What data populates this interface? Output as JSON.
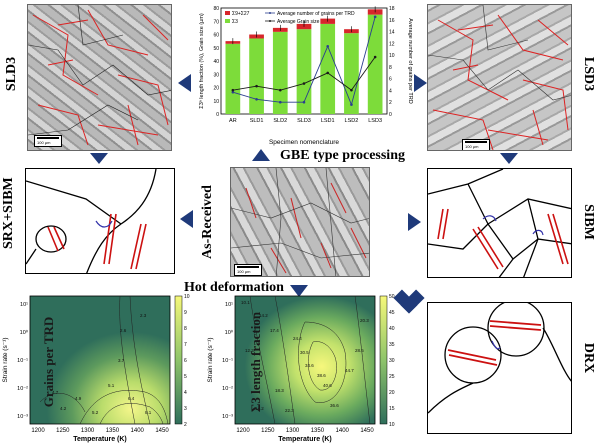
{
  "labels": {
    "sld3": "SLD3",
    "lsd3": "LSD3",
    "srx_sibm": "SRX+SIBM",
    "sibm": "SIBM",
    "as_received": "As-Received",
    "drx": "DRX",
    "gbe": "GBE type processing",
    "hot_deformation": "Hot deformation"
  },
  "scale": {
    "left": "100 µm",
    "center": "100 µm",
    "right": "100 µm"
  },
  "chart_data": [
    {
      "type": "bar",
      "categories": [
        "AR",
        "SLD1",
        "SLD2",
        "SLD3",
        "LSD1",
        "LSD2",
        "LSD3"
      ],
      "series": [
        {
          "name": "Σ9+Σ27",
          "values": [
            2,
            3,
            3,
            4,
            4,
            3,
            4
          ]
        },
        {
          "name": "Σ3",
          "values": [
            53,
            57,
            62,
            64,
            68,
            61,
            75
          ]
        },
        {
          "name": "Average number of grains per TRD",
          "values": [
            3.7,
            2.5,
            2.0,
            2.0,
            11.5,
            1.6,
            16.5
          ]
        },
        {
          "name": "Average Grain size",
          "values": [
            18,
            21,
            18,
            23,
            31,
            18,
            43
          ]
        }
      ],
      "xlabel": "Specimen nomenclature",
      "ylabel": "Σ3ⁿ length fraction (%), Grain size (µm)",
      "y2label": "Average number of grains per TRD",
      "ylim": [
        0,
        80
      ],
      "y2lim": [
        0,
        18
      ],
      "yticks": [
        "0",
        "10",
        "20",
        "30",
        "40",
        "50",
        "60",
        "70",
        "80"
      ],
      "y2ticks": [
        "0",
        "2",
        "4",
        "6",
        "8",
        "10",
        "12",
        "14",
        "16",
        "18"
      ],
      "colors": {
        "s9": "#d7262b",
        "s3": "#7ddc3a",
        "grains": "#2b3f8f",
        "size": "#1a1a1a"
      }
    },
    {
      "type": "heatmap",
      "title": "Grains per TRD",
      "xlabel": "Temperature (K)",
      "ylabel": "Strain rate (s⁻¹)",
      "xticks": [
        "1200",
        "1250",
        "1300",
        "1350",
        "1400",
        "1450"
      ],
      "yticks": [
        "10¹",
        "10⁰",
        "10⁻¹",
        "10⁻²",
        "10⁻³"
      ],
      "colorbar": [
        "2",
        "3",
        "4",
        "5",
        "6",
        "7",
        "8",
        "9",
        "10"
      ],
      "contour_labels": [
        "2.3",
        "2.6",
        "4.9",
        "4.7",
        "5.1",
        "6.4",
        "8.1",
        "5.2",
        "3.7",
        "4.2"
      ]
    },
    {
      "type": "heatmap",
      "title": "Σ3 length fraction",
      "xlabel": "Temperature (K)",
      "ylabel": "Strain rate (s⁻¹)",
      "xticks": [
        "1200",
        "1250",
        "1300",
        "1350",
        "1400",
        "1450"
      ],
      "yticks": [
        "10¹",
        "10⁰",
        "10⁻¹",
        "10⁻²",
        "10⁻³"
      ],
      "colorbar": [
        "10",
        "15",
        "20",
        "25",
        "30",
        "35",
        "40",
        "45",
        "50"
      ],
      "contour_labels": [
        "10.1",
        "14.2",
        "12.3",
        "17.4",
        "24.4",
        "30.5",
        "34.6",
        "38.6",
        "40.6",
        "28.5",
        "20.3",
        "18.3",
        "14.2",
        "22.3",
        "36.6",
        "44.7"
      ]
    }
  ]
}
